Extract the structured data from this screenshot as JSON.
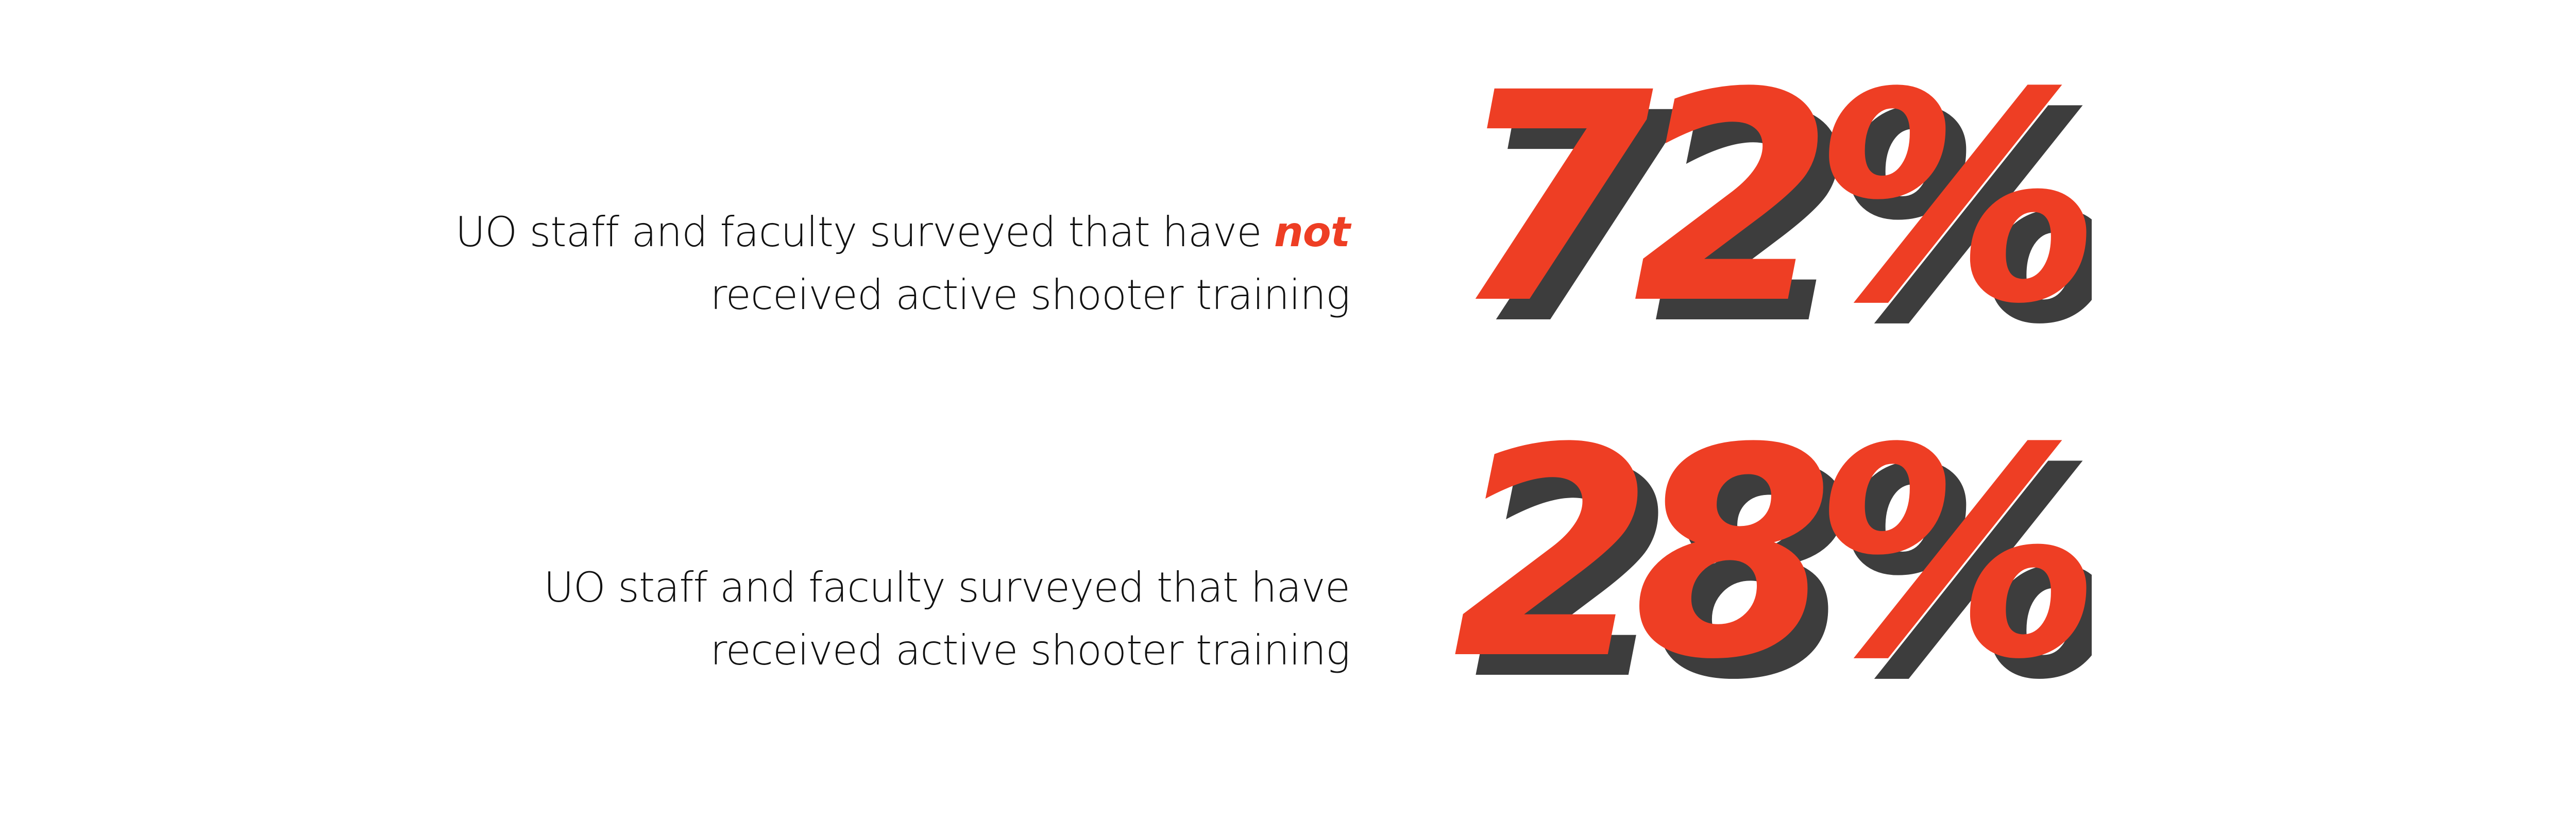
{
  "stats": [
    {
      "value": "72%",
      "caption_line1_before": "UO staff and faculty surveyed that have ",
      "caption_line1_emphasis": "not",
      "caption_line2": "received active shooter training"
    },
    {
      "value": "28%",
      "caption_line1_before": "UO staff and faculty surveyed that have",
      "caption_line1_emphasis": "",
      "caption_line2": "received active shooter training"
    }
  ],
  "colors": {
    "accent": "#ee3e24",
    "shadow": "#3d3d3d",
    "text": "#111111",
    "background": "#ffffff"
  }
}
